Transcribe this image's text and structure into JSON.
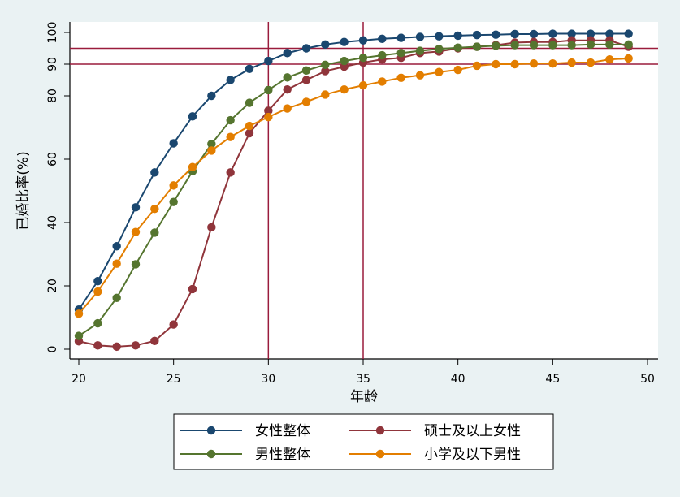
{
  "chart_data": {
    "type": "line",
    "xlabel": "年龄",
    "ylabel": "已婚比率(%)",
    "xlim": [
      20,
      50
    ],
    "ylim": [
      0,
      100
    ],
    "x_ticks": [
      "20",
      "25",
      "30",
      "35",
      "40",
      "45",
      "50"
    ],
    "y_ticks": [
      "0",
      "20",
      "40",
      "60",
      "80",
      "90",
      "100"
    ],
    "grid": false,
    "legend_position": "bottom",
    "reference_lines": {
      "vertical": [
        30,
        35
      ],
      "horizontal": [
        90,
        95
      ],
      "color": "#9a1c3c"
    },
    "x": [
      20,
      21,
      22,
      23,
      24,
      25,
      26,
      27,
      28,
      29,
      30,
      31,
      32,
      33,
      34,
      35,
      36,
      37,
      38,
      39,
      40,
      41,
      42,
      43,
      44,
      45,
      46,
      47,
      48,
      49
    ],
    "series": [
      {
        "name": "女性整体",
        "color": "#1a476f",
        "values": [
          12.5,
          21.5,
          32.5,
          44.8,
          55.8,
          65,
          73.5,
          80,
          85,
          88.5,
          91,
          93.5,
          95,
          96.2,
          97,
          97.5,
          98,
          98.3,
          98.6,
          98.8,
          99,
          99.2,
          99.3,
          99.5,
          99.5,
          99.6,
          99.6,
          99.6,
          99.6,
          99.6
        ]
      },
      {
        "name": "硕士及以上女性",
        "color": "#90353b",
        "values": [
          2.5,
          1.2,
          0.8,
          1.2,
          2.6,
          7.8,
          19,
          38.5,
          55.8,
          68.2,
          75.3,
          82,
          85,
          87.8,
          89.2,
          90.5,
          91.5,
          92,
          93.5,
          94,
          95,
          95.5,
          96,
          96.8,
          97,
          97,
          97.5,
          97.5,
          97.5,
          95.5
        ]
      },
      {
        "name": "男性整体",
        "color": "#55752f",
        "values": [
          4.2,
          8.2,
          16.2,
          26.8,
          36.8,
          46.5,
          56.2,
          64.8,
          72.3,
          77.8,
          81.8,
          85.8,
          88,
          89.8,
          91,
          92,
          92.8,
          93.5,
          94.2,
          94.8,
          95.2,
          95.5,
          95.8,
          96,
          96,
          96,
          96,
          96.2,
          96.2,
          96.2
        ]
      },
      {
        "name": "小学及以下男性",
        "color": "#e37e00",
        "values": [
          11.2,
          18.2,
          27,
          37,
          44.3,
          51.7,
          57.5,
          62.7,
          67,
          70.5,
          73.3,
          76,
          78.1,
          80.4,
          82,
          83.3,
          84.5,
          85.7,
          86.5,
          87.5,
          88.2,
          89.5,
          90,
          90,
          90.2,
          90.2,
          90.5,
          90.5,
          91.5,
          91.8
        ]
      }
    ]
  }
}
